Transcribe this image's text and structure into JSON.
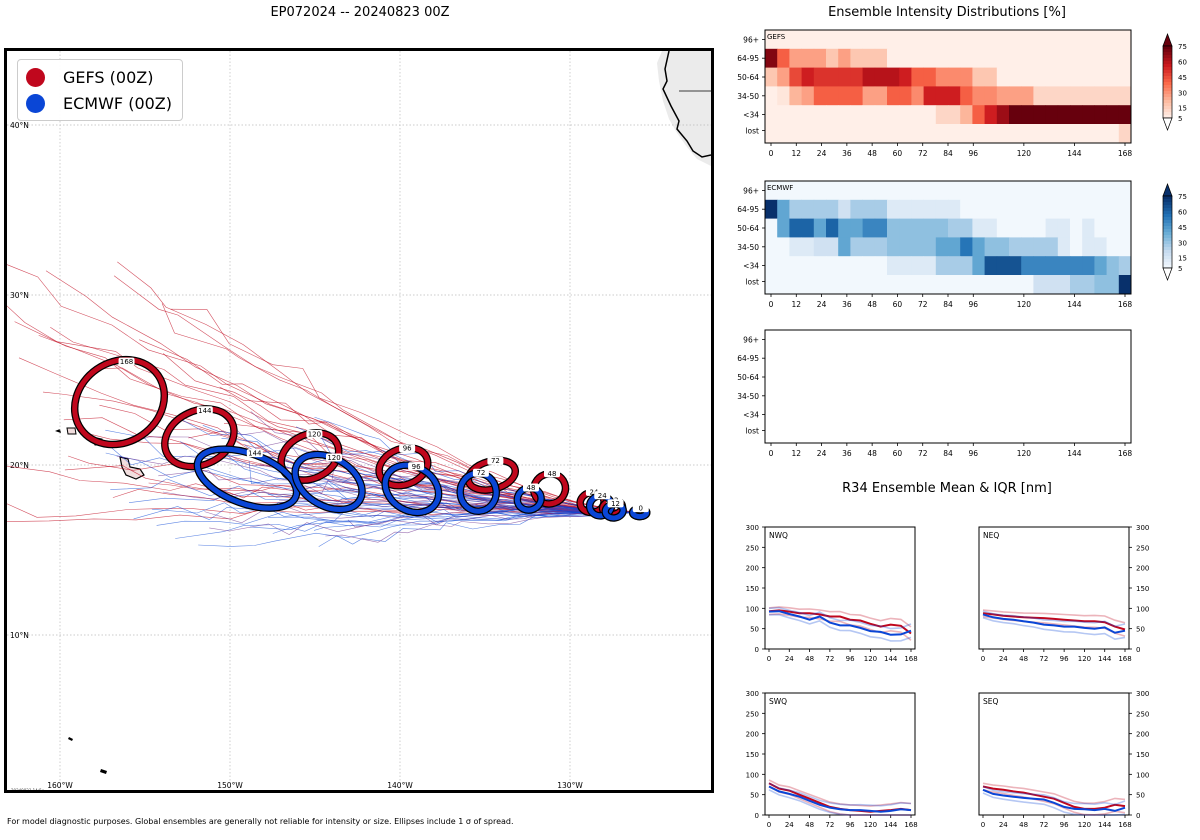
{
  "map_title": "EP072024 -- 20240823 00Z",
  "dist_title": "Ensemble Intensity Distributions [%]",
  "r34_title": "R34 Ensemble Mean & IQR [nm]",
  "footer": "For model diagnostic purposes. Global ensembles are generally not reliable for intensity or size. Ellipses include 1 σ of spread.",
  "map_stamp": "20240823 14:5x",
  "colors": {
    "gefs": "#c0071d",
    "ecmwf": "#0a46d6"
  },
  "legend": [
    {
      "label": "GEFS (00Z)",
      "color": "#c0071d"
    },
    {
      "label": "ECMWF (00Z)",
      "color": "#0a46d6"
    }
  ],
  "chart_data": [
    {
      "type": "map",
      "lon_labels": [
        "160°W",
        "150°W",
        "140°W",
        "130°W"
      ],
      "lat_labels": [
        "40°N",
        "30°N",
        "20°N",
        "10°N"
      ],
      "series": [
        {
          "name": "GEFS (00Z)",
          "ellipses": [
            {
              "hour": 0,
              "lon": -125.9,
              "lat": 17.2
            },
            {
              "hour": 12,
              "lon": -127.5,
              "lat": 17.5
            },
            {
              "hour": 24,
              "lon": -128.7,
              "lat": 17.8
            },
            {
              "hour": 48,
              "lon": -131.2,
              "lat": 18.6
            },
            {
              "hour": 72,
              "lon": -134.6,
              "lat": 19.4
            },
            {
              "hour": 96,
              "lon": -139.8,
              "lat": 19.9
            },
            {
              "hour": 120,
              "lon": -145.3,
              "lat": 20.5
            },
            {
              "hour": 144,
              "lon": -151.8,
              "lat": 21.6
            },
            {
              "hour": 168,
              "lon": -156.5,
              "lat": 23.7
            }
          ]
        },
        {
          "name": "ECMWF (00Z)",
          "ellipses": [
            {
              "hour": 0,
              "lon": -125.9,
              "lat": 17.2
            },
            {
              "hour": 12,
              "lon": -127.4,
              "lat": 17.3
            },
            {
              "hour": 24,
              "lon": -128.2,
              "lat": 17.6
            },
            {
              "hour": 48,
              "lon": -132.4,
              "lat": 18.0
            },
            {
              "hour": 72,
              "lon": -135.4,
              "lat": 18.4
            },
            {
              "hour": 96,
              "lon": -139.3,
              "lat": 18.6
            },
            {
              "hour": 120,
              "lon": -144.2,
              "lat": 19.0
            },
            {
              "hour": 144,
              "lon": -149.0,
              "lat": 19.2
            }
          ]
        }
      ]
    },
    {
      "type": "heatmap",
      "name": "GEFS",
      "cmap": "reds",
      "rows": [
        "96+",
        "64-95",
        "50-64",
        "34-50",
        "<34",
        "lost"
      ],
      "x_ticks": [
        0,
        12,
        24,
        36,
        48,
        60,
        72,
        84,
        96,
        120,
        144,
        168
      ],
      "colorbar_ticks": [
        5,
        15,
        30,
        45,
        60,
        75
      ],
      "values": [
        [
          2,
          2,
          2,
          2,
          2,
          2,
          2,
          2,
          2,
          2,
          2,
          2,
          2,
          2,
          2,
          2,
          2,
          2,
          2,
          2,
          2,
          2,
          2,
          2,
          2,
          2,
          2,
          2,
          2,
          2
        ],
        [
          70,
          40,
          25,
          25,
          25,
          15,
          25,
          15,
          15,
          15,
          2,
          2,
          2,
          2,
          2,
          2,
          2,
          2,
          2,
          2,
          2,
          2,
          2,
          2,
          2,
          2,
          2,
          2,
          2,
          2
        ],
        [
          15,
          25,
          45,
          55,
          50,
          50,
          50,
          50,
          60,
          60,
          60,
          55,
          40,
          40,
          30,
          30,
          30,
          15,
          15,
          2,
          2,
          2,
          2,
          2,
          2,
          2,
          2,
          2,
          2,
          2
        ],
        [
          2,
          5,
          20,
          25,
          40,
          40,
          40,
          40,
          25,
          25,
          40,
          40,
          30,
          55,
          55,
          55,
          40,
          30,
          30,
          25,
          25,
          25,
          10,
          10,
          10,
          10,
          10,
          10,
          10,
          10
        ],
        [
          2,
          2,
          2,
          2,
          2,
          2,
          2,
          2,
          2,
          2,
          2,
          2,
          2,
          2,
          10,
          10,
          20,
          40,
          55,
          65,
          75,
          75,
          75,
          75,
          75,
          75,
          75,
          75,
          75,
          75
        ],
        [
          2,
          2,
          2,
          2,
          2,
          2,
          2,
          2,
          2,
          2,
          2,
          2,
          2,
          2,
          2,
          2,
          2,
          2,
          2,
          2,
          2,
          2,
          2,
          2,
          2,
          2,
          2,
          2,
          2,
          10
        ]
      ]
    },
    {
      "type": "heatmap",
      "name": "ECMWF",
      "cmap": "blues",
      "rows": [
        "96+",
        "64-95",
        "50-64",
        "34-50",
        "<34",
        "lost"
      ],
      "x_ticks": [
        0,
        12,
        24,
        36,
        48,
        60,
        72,
        84,
        96,
        120,
        144,
        168
      ],
      "colorbar_ticks": [
        5,
        15,
        30,
        45,
        60,
        75
      ],
      "values": [
        [
          2,
          2,
          2,
          2,
          2,
          2,
          2,
          2,
          2,
          2,
          2,
          2,
          2,
          2,
          2,
          2,
          2,
          2,
          2,
          2,
          2,
          2,
          2,
          2,
          2,
          2,
          2,
          2,
          2,
          2
        ],
        [
          75,
          40,
          25,
          25,
          25,
          25,
          15,
          25,
          25,
          25,
          10,
          10,
          10,
          10,
          10,
          10,
          2,
          2,
          2,
          2,
          2,
          2,
          2,
          2,
          2,
          2,
          2,
          2,
          2,
          2
        ],
        [
          2,
          40,
          60,
          60,
          40,
          60,
          40,
          40,
          50,
          50,
          30,
          30,
          30,
          30,
          30,
          25,
          25,
          10,
          10,
          2,
          2,
          2,
          2,
          10,
          10,
          2,
          10,
          2,
          2,
          2
        ],
        [
          2,
          2,
          10,
          10,
          15,
          15,
          40,
          25,
          25,
          25,
          30,
          30,
          30,
          30,
          40,
          40,
          55,
          40,
          30,
          30,
          25,
          25,
          25,
          25,
          10,
          2,
          10,
          10,
          2,
          2
        ],
        [
          2,
          2,
          2,
          2,
          2,
          2,
          2,
          2,
          2,
          2,
          10,
          10,
          10,
          10,
          25,
          25,
          25,
          40,
          65,
          65,
          65,
          50,
          50,
          50,
          50,
          50,
          50,
          40,
          30,
          25
        ],
        [
          2,
          2,
          2,
          2,
          2,
          2,
          2,
          2,
          2,
          2,
          2,
          2,
          2,
          2,
          2,
          2,
          2,
          2,
          2,
          2,
          2,
          2,
          15,
          15,
          15,
          25,
          25,
          30,
          30,
          75
        ]
      ]
    },
    {
      "type": "heatmap",
      "name": "",
      "rows": [
        "96+",
        "64-95",
        "50-64",
        "34-50",
        "<34",
        "lost"
      ],
      "x_ticks": [
        0,
        12,
        24,
        36,
        48,
        60,
        72,
        84,
        96,
        120,
        144,
        168
      ],
      "values": []
    },
    {
      "type": "line",
      "name": "NWQ",
      "xticks": [
        0,
        24,
        48,
        72,
        96,
        120,
        144,
        168
      ],
      "yticks": [
        0,
        50,
        100,
        150,
        200,
        250,
        300
      ],
      "ylim": [
        0,
        300
      ],
      "xlim": [
        0,
        168
      ],
      "x": [
        0,
        12,
        24,
        36,
        48,
        60,
        72,
        84,
        96,
        108,
        120,
        132,
        144,
        156,
        168
      ],
      "series": [
        {
          "name": "GEFS mean",
          "values": [
            93,
            95,
            92,
            88,
            88,
            85,
            80,
            80,
            72,
            70,
            62,
            55,
            60,
            57,
            38
          ]
        },
        {
          "name": "ECMWF mean",
          "values": [
            92,
            93,
            86,
            80,
            72,
            80,
            65,
            58,
            58,
            52,
            44,
            42,
            35,
            36,
            45
          ]
        }
      ]
    },
    {
      "type": "line",
      "name": "NEQ",
      "xticks": [
        0,
        24,
        48,
        72,
        96,
        120,
        144,
        168
      ],
      "yticks": [
        0,
        50,
        100,
        150,
        200,
        250,
        300
      ],
      "ylim": [
        0,
        300
      ],
      "xlim": [
        0,
        168
      ],
      "x": [
        0,
        12,
        24,
        36,
        48,
        60,
        72,
        84,
        96,
        108,
        120,
        132,
        144,
        156,
        168
      ],
      "series": [
        {
          "name": "GEFS mean",
          "values": [
            88,
            85,
            82,
            80,
            78,
            77,
            76,
            74,
            72,
            70,
            68,
            68,
            66,
            55,
            48
          ]
        },
        {
          "name": "ECMWF mean",
          "values": [
            85,
            78,
            74,
            72,
            68,
            65,
            60,
            58,
            55,
            55,
            52,
            50,
            53,
            40,
            45
          ]
        }
      ]
    },
    {
      "type": "line",
      "name": "SWQ",
      "xticks": [
        0,
        24,
        48,
        72,
        96,
        120,
        144,
        168
      ],
      "yticks": [
        0,
        50,
        100,
        150,
        200,
        250,
        300
      ],
      "ylim": [
        0,
        300
      ],
      "xlim": [
        0,
        168
      ],
      "x": [
        0,
        12,
        24,
        36,
        48,
        60,
        72,
        84,
        96,
        108,
        120,
        132,
        144,
        156,
        168
      ],
      "series": [
        {
          "name": "GEFS mean",
          "values": [
            78,
            65,
            60,
            50,
            40,
            30,
            20,
            15,
            12,
            10,
            8,
            10,
            12,
            15,
            12
          ]
        },
        {
          "name": "ECMWF mean",
          "values": [
            70,
            58,
            52,
            45,
            35,
            25,
            18,
            14,
            12,
            12,
            10,
            8,
            10,
            14,
            12
          ]
        }
      ]
    },
    {
      "type": "line",
      "name": "SEQ",
      "xticks": [
        0,
        24,
        48,
        72,
        96,
        120,
        144,
        168
      ],
      "yticks": [
        0,
        50,
        100,
        150,
        200,
        250,
        300
      ],
      "ylim": [
        0,
        300
      ],
      "xlim": [
        0,
        168
      ],
      "x": [
        0,
        12,
        24,
        36,
        48,
        60,
        72,
        84,
        96,
        108,
        120,
        132,
        144,
        156,
        168
      ],
      "series": [
        {
          "name": "GEFS mean",
          "values": [
            70,
            65,
            62,
            58,
            55,
            50,
            45,
            40,
            30,
            20,
            15,
            15,
            18,
            25,
            22
          ]
        },
        {
          "name": "ECMWF mean",
          "values": [
            62,
            52,
            48,
            45,
            42,
            40,
            38,
            30,
            20,
            15,
            14,
            12,
            15,
            10,
            18
          ]
        }
      ]
    }
  ]
}
